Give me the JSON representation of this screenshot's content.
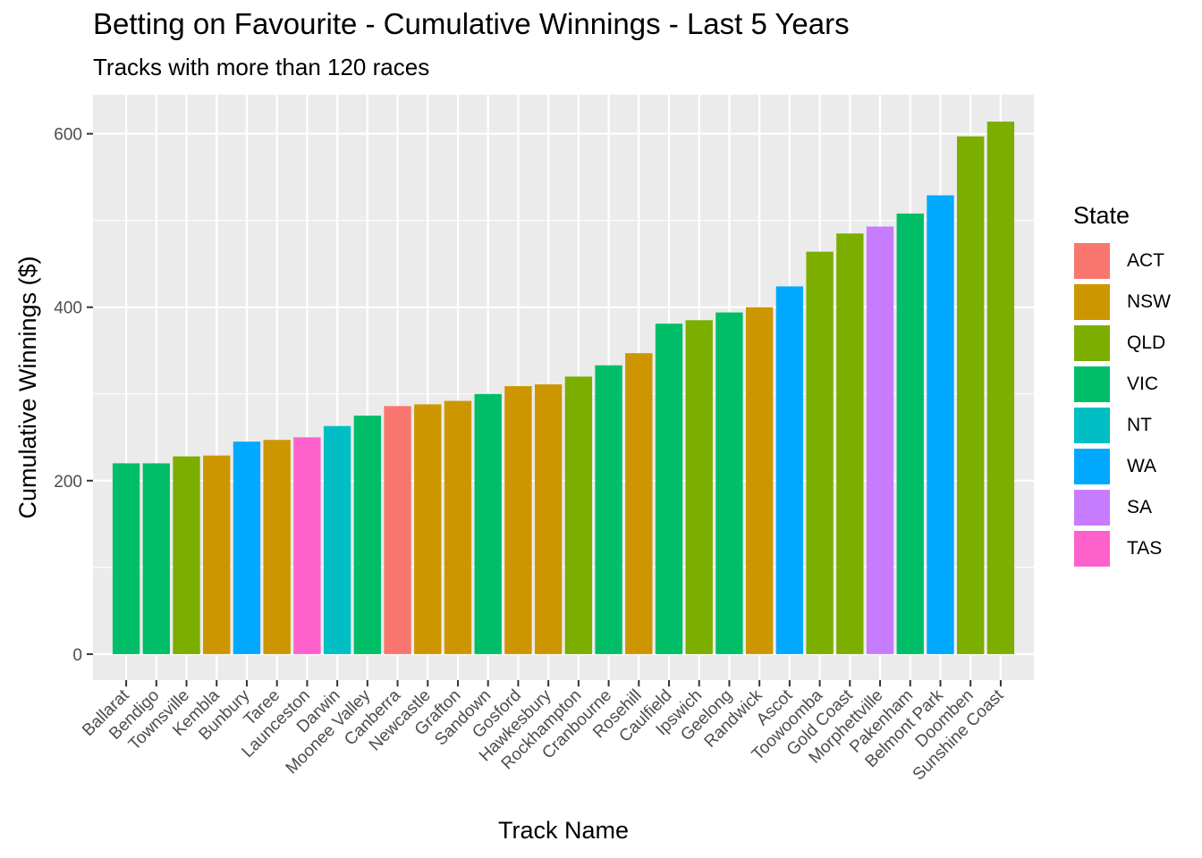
{
  "chart_data": {
    "type": "bar",
    "title": "Betting on Favourite - Cumulative Winnings - Last 5 Years",
    "subtitle": "Tracks with more than 120 races",
    "xlabel": "Track Name",
    "ylabel": "Cumulative Winnings ($)",
    "ylim": [
      -30,
      645
    ],
    "yticks": [
      0,
      200,
      400,
      600
    ],
    "grid": true,
    "legend_title": "State",
    "legend_position": "right",
    "legend": [
      {
        "label": "ACT",
        "color": "#F8766D"
      },
      {
        "label": "NSW",
        "color": "#CD9600"
      },
      {
        "label": "QLD",
        "color": "#7CAE00"
      },
      {
        "label": "VIC",
        "color": "#00BE67"
      },
      {
        "label": "NT",
        "color": "#00BFC4"
      },
      {
        "label": "WA",
        "color": "#00A9FF"
      },
      {
        "label": "SA",
        "color": "#C77CFF"
      },
      {
        "label": "TAS",
        "color": "#FF61CC"
      }
    ],
    "categories": [
      "Ballarat",
      "Bendigo",
      "Townsville",
      "Kembla",
      "Bunbury",
      "Taree",
      "Launceston",
      "Darwin",
      "Moonee Valley",
      "Canberra",
      "Newcastle",
      "Grafton",
      "Sandown",
      "Gosford",
      "Hawkesbury",
      "Rockhampton",
      "Cranbourne",
      "Rosehill",
      "Caulfield",
      "Ipswich",
      "Geelong",
      "Randwick",
      "Ascot",
      "Toowoomba",
      "Gold Coast",
      "Morphettville",
      "Pakenham",
      "Belmont Park",
      "Doomben",
      "Sunshine Coast"
    ],
    "values": [
      220,
      220,
      228,
      229,
      245,
      247,
      250,
      263,
      275,
      286,
      288,
      292,
      300,
      309,
      311,
      320,
      333,
      347,
      381,
      385,
      394,
      400,
      424,
      464,
      485,
      493,
      508,
      529,
      597,
      614
    ],
    "state": [
      "VIC",
      "VIC",
      "QLD",
      "NSW",
      "WA",
      "NSW",
      "TAS",
      "NT",
      "VIC",
      "ACT",
      "NSW",
      "NSW",
      "VIC",
      "NSW",
      "NSW",
      "QLD",
      "VIC",
      "NSW",
      "VIC",
      "QLD",
      "VIC",
      "NSW",
      "WA",
      "QLD",
      "QLD",
      "SA",
      "VIC",
      "WA",
      "QLD",
      "QLD"
    ]
  }
}
